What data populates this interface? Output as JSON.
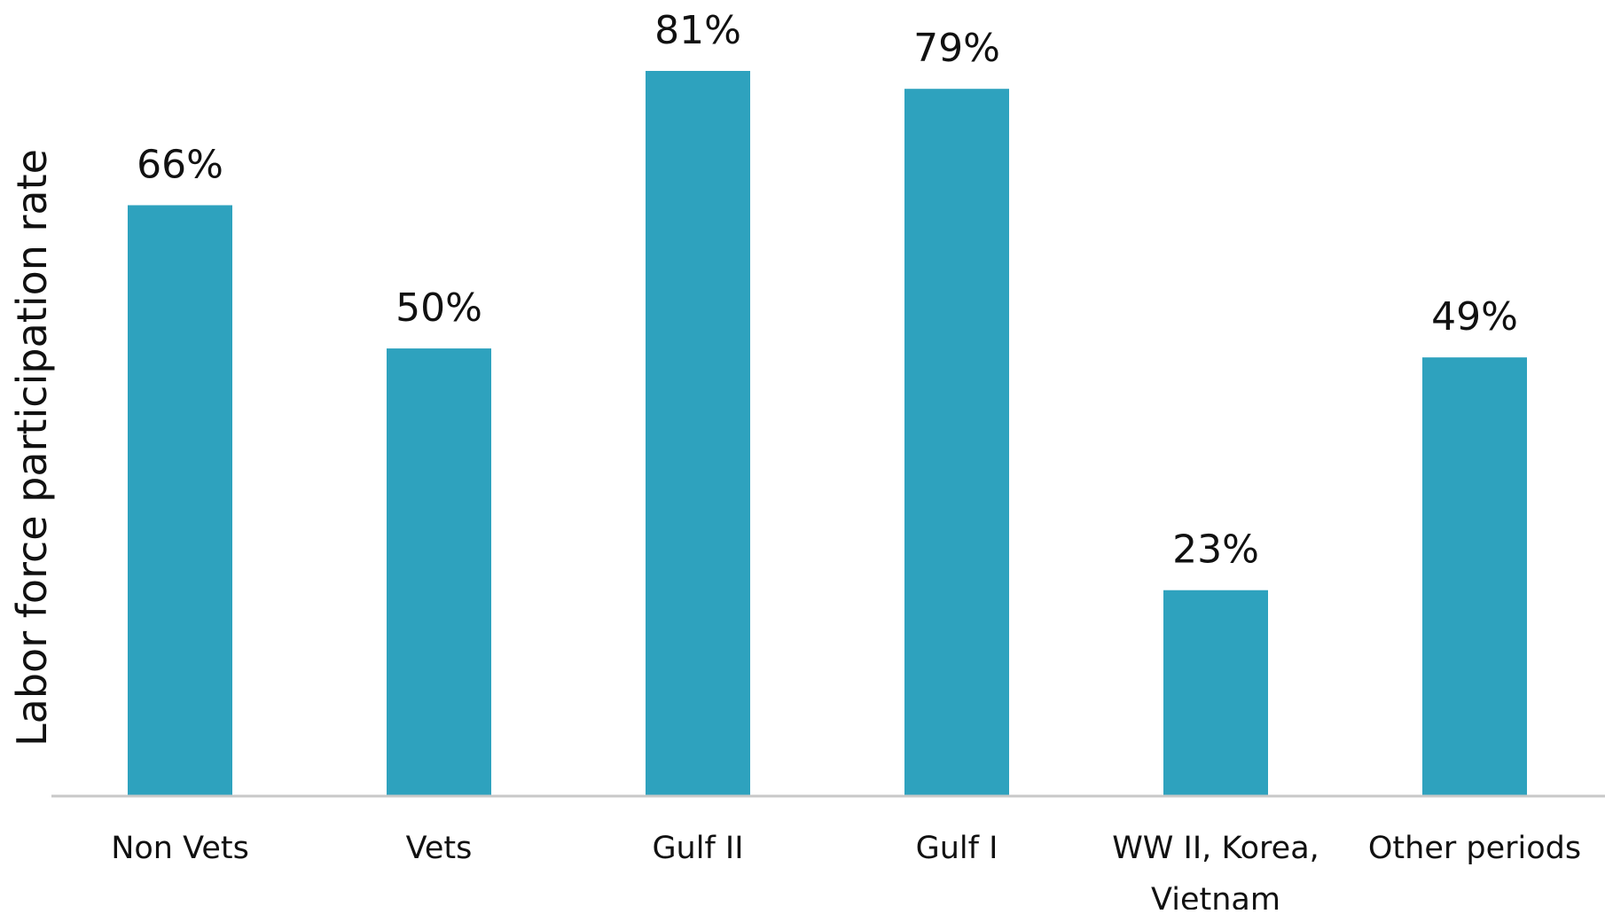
{
  "chart_data": {
    "type": "bar",
    "categories": [
      [
        "Non Vets"
      ],
      [
        "Vets"
      ],
      [
        "Gulf II"
      ],
      [
        "Gulf I"
      ],
      [
        "WW II, Korea,",
        "Vietnam"
      ],
      [
        "Other periods"
      ]
    ],
    "values": [
      66,
      50,
      81,
      79,
      23,
      49
    ],
    "data_labels": [
      "66%",
      "50%",
      "81%",
      "79%",
      "23%",
      "49%"
    ],
    "title": "",
    "xlabel": "",
    "ylabel": "Labor force participation rate",
    "ylim": [
      0,
      81
    ],
    "grid": false,
    "legend": "none",
    "bar_color": "#2ea2be",
    "axis_color": "#c8c8c8"
  }
}
